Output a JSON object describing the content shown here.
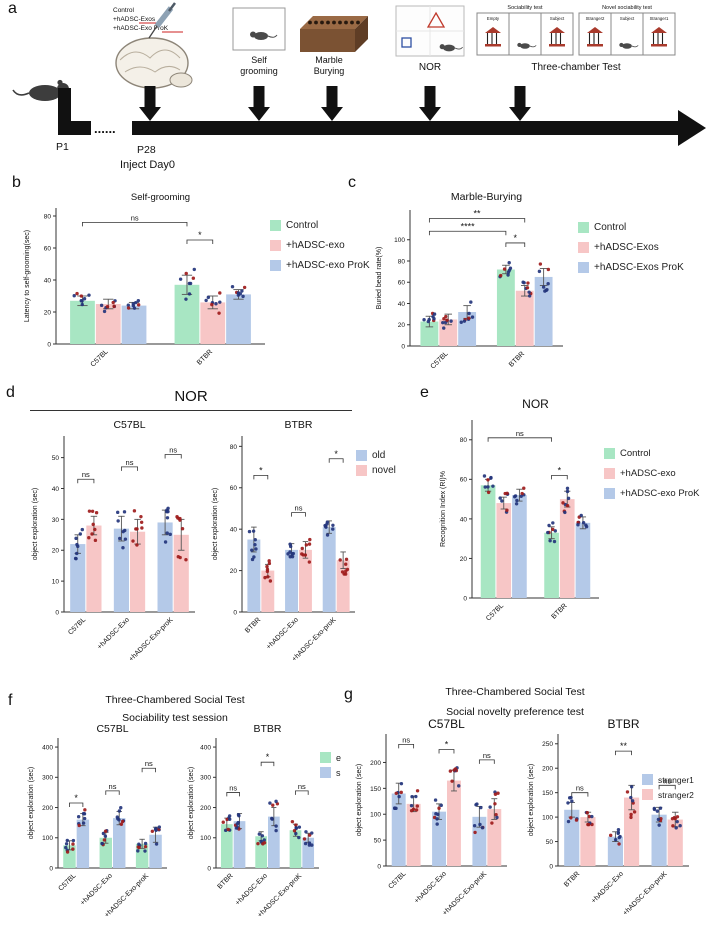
{
  "panels": {
    "a": "a",
    "b": "b",
    "c": "c",
    "d": "d",
    "e": "e",
    "f": "f",
    "g": "g"
  },
  "colors": {
    "green": "#a8e6c3",
    "pink": "#f7c6c6",
    "blue": "#b4c9e8",
    "navy": "#24357c",
    "red": "#9e1b1b"
  },
  "panel_a": {
    "injection_labels": [
      "Control",
      "+hADSC-Exos",
      "+hADSC-Exo ProK"
    ],
    "test_labels": {
      "grooming1": "Self",
      "grooming2": "grooming",
      "marble1": "Marble",
      "marble2": "Burying",
      "nor": "NOR",
      "three": "Three-chamber Test"
    },
    "sociability_title": "Sociability test",
    "novel_title": "Novel sociability test",
    "chambers1": [
      "Empty",
      "Subject"
    ],
    "chambers2": [
      "Stranger2",
      "Subject",
      "Stranger1"
    ],
    "p1": "P1",
    "dots": "......",
    "p28": "P28",
    "inject": "Inject Day0"
  },
  "titles": {
    "d": "NOR",
    "f1": "Three-Chambered Social Test",
    "f2": "Sociability test session",
    "g1": "Three-Chambered Social Test",
    "g2": "Social novelty preference test"
  },
  "legends": {
    "b": [
      "Control",
      "+hADSC-exo",
      "+hADSC-exo ProK"
    ],
    "c": [
      "Control",
      "+hADSC-Exos",
      "+hADSC-Exos ProK"
    ],
    "d": [
      "old",
      "novel"
    ],
    "e": [
      "Control",
      "+hADSC-exo",
      "+hADSC-exo ProK"
    ],
    "f": [
      "e",
      "s"
    ],
    "g": [
      "stranger1",
      "stranger2"
    ]
  },
  "chart_data": [
    {
      "id": "b-self-grooming",
      "type": "bar",
      "title": "Self-grooming",
      "title_size": 9.5,
      "ylabel": "Latency to self-grooming(sec)",
      "ylim": [
        0,
        85
      ],
      "yticks": [
        0,
        20,
        40,
        60,
        80
      ],
      "categories": [
        "C57BL",
        "BTBR"
      ],
      "rotate": true,
      "ml": 36,
      "mt": 20,
      "mb": 36,
      "series": [
        {
          "name": "Control",
          "color": "green",
          "dots": [
            "navy",
            "navy",
            "red"
          ],
          "values": [
            27,
            37
          ],
          "errors": [
            3,
            6
          ]
        },
        {
          "name": "+hADSC-exo",
          "color": "pink",
          "dots": [
            "navy",
            "red",
            "navy"
          ],
          "values": [
            25,
            26
          ],
          "errors": [
            3,
            4
          ]
        },
        {
          "name": "+hADSC-exo ProK",
          "color": "blue",
          "dots": [
            "navy",
            "navy",
            "red"
          ],
          "values": [
            24,
            31
          ],
          "errors": [
            2,
            3
          ]
        }
      ],
      "annotations": [
        {
          "x1": [
            0,
            0
          ],
          "x2": [
            1,
            0
          ],
          "y": 76,
          "label": "ns"
        },
        {
          "x1": [
            1,
            0
          ],
          "x2": [
            1,
            1
          ],
          "y": 65,
          "label": "*"
        }
      ]
    },
    {
      "id": "c-marble-burying",
      "type": "bar",
      "title": "Marble-Burying",
      "title_size": 10.5,
      "ylabel": "Buried bead rate(%)",
      "ylim": [
        0,
        128
      ],
      "yticks": [
        0,
        20,
        40,
        60,
        80,
        100
      ],
      "categories": [
        "C57BL",
        "BTBR"
      ],
      "rotate": true,
      "ml": 38,
      "mt": 22,
      "mb": 38,
      "series": [
        {
          "name": "Control",
          "color": "green",
          "dots": [
            "navy",
            "navy",
            "red"
          ],
          "values": [
            23,
            72
          ],
          "errors": [
            5,
            4
          ]
        },
        {
          "name": "+hADSC-Exos",
          "color": "pink",
          "dots": [
            "navy",
            "red",
            "navy"
          ],
          "values": [
            25,
            52
          ],
          "errors": [
            5,
            5
          ]
        },
        {
          "name": "+hADSC-Exos ProK",
          "color": "blue",
          "dots": [
            "navy",
            "navy",
            "red"
          ],
          "values": [
            32,
            65
          ],
          "errors": [
            6,
            8
          ]
        }
      ],
      "annotations": [
        {
          "x1": [
            0,
            0
          ],
          "x2": [
            1,
            1
          ],
          "y": 120,
          "label": "**"
        },
        {
          "x1": [
            0,
            0
          ],
          "x2": [
            1,
            0
          ],
          "y": 108,
          "label": "****"
        },
        {
          "x1": [
            1,
            0
          ],
          "x2": [
            1,
            1
          ],
          "y": 97,
          "label": "*"
        }
      ]
    },
    {
      "id": "d-c57bl",
      "type": "bar",
      "title": "C57BL",
      "title_size": 10.5,
      "ylabel": "object exploration (sec)",
      "ylim": [
        0,
        57
      ],
      "yticks": [
        0,
        10,
        20,
        30,
        40,
        50
      ],
      "categories": [
        "C57BL",
        "+hADSC-Exo",
        "+hADSC-Exo-proK"
      ],
      "rotate": true,
      "ml": 36,
      "mt": 20,
      "mb": 70,
      "series": [
        {
          "name": "old",
          "color": "blue",
          "dots": [
            "navy"
          ],
          "values": [
            22,
            27,
            29
          ],
          "errors": [
            3,
            4,
            4
          ]
        },
        {
          "name": "novel",
          "color": "pink",
          "dots": [
            "red"
          ],
          "values": [
            28,
            26,
            25
          ],
          "errors": [
            3,
            4,
            5
          ]
        }
      ],
      "annotations": [
        {
          "x1": [
            0,
            0
          ],
          "x2": [
            0,
            1
          ],
          "y": 43,
          "label": "ns"
        },
        {
          "x1": [
            1,
            0
          ],
          "x2": [
            1,
            1
          ],
          "y": 47,
          "label": "ns"
        },
        {
          "x1": [
            2,
            0
          ],
          "x2": [
            2,
            1
          ],
          "y": 51,
          "label": "ns"
        }
      ]
    },
    {
      "id": "d-btbr",
      "type": "bar",
      "title": "BTBR",
      "title_size": 10.5,
      "ylabel": "object exploration (sec)",
      "ylim": [
        0,
        85
      ],
      "yticks": [
        0,
        20,
        40,
        60,
        80
      ],
      "categories": [
        "BTBR",
        "+hADSC-Exo",
        "+hADSC-Exo-proK"
      ],
      "rotate": true,
      "ml": 34,
      "mt": 20,
      "mb": 70,
      "series": [
        {
          "name": "old",
          "color": "blue",
          "dots": [
            "navy"
          ],
          "values": [
            35,
            30,
            41
          ],
          "errors": [
            6,
            3,
            3
          ]
        },
        {
          "name": "novel",
          "color": "pink",
          "dots": [
            "red"
          ],
          "values": [
            20,
            30,
            25
          ],
          "errors": [
            3,
            4,
            4
          ]
        }
      ],
      "annotations": [
        {
          "x1": [
            0,
            0
          ],
          "x2": [
            0,
            1
          ],
          "y": 66,
          "label": "*"
        },
        {
          "x1": [
            1,
            0
          ],
          "x2": [
            1,
            1
          ],
          "y": 48,
          "label": "ns"
        },
        {
          "x1": [
            2,
            0
          ],
          "x2": [
            2,
            1
          ],
          "y": 74,
          "label": "*"
        }
      ]
    },
    {
      "id": "e-nor-ri",
      "type": "bar",
      "title": "NOR",
      "title_size": 12,
      "ylabel": "Recognition Index (RI)%",
      "ylim": [
        0,
        90
      ],
      "yticks": [
        0,
        20,
        40,
        60,
        80
      ],
      "categories": [
        "C57BL",
        "BTBR"
      ],
      "rotate": true,
      "ml": 36,
      "mt": 24,
      "mb": 48,
      "series": [
        {
          "name": "Control",
          "color": "green",
          "dots": [
            "navy",
            "navy",
            "red"
          ],
          "values": [
            57,
            33
          ],
          "errors": [
            3,
            3
          ]
        },
        {
          "name": "+hADSC-exo",
          "color": "pink",
          "dots": [
            "navy",
            "red",
            "navy"
          ],
          "values": [
            48,
            50
          ],
          "errors": [
            3,
            4
          ]
        },
        {
          "name": "+hADSC-exo ProK",
          "color": "blue",
          "dots": [
            "navy",
            "navy",
            "red"
          ],
          "values": [
            52,
            38
          ],
          "errors": [
            3,
            3
          ]
        }
      ],
      "annotations": [
        {
          "x1": [
            0,
            0
          ],
          "x2": [
            1,
            0
          ],
          "y": 81,
          "label": "ns"
        },
        {
          "x1": [
            1,
            0
          ],
          "x2": [
            1,
            1
          ],
          "y": 62,
          "label": "*"
        }
      ]
    },
    {
      "id": "f-c57bl",
      "type": "bar",
      "title": "C57BL",
      "title_size": 10.5,
      "ylabel": "object exploration (sec)",
      "ylim": [
        0,
        430
      ],
      "yticks": [
        0,
        100,
        200,
        300,
        400
      ],
      "categories": [
        "C57BL",
        "+hADSC-Exo",
        "+hADSC-Exo-proK"
      ],
      "rotate": true,
      "ml": 34,
      "mt": 18,
      "mb": 62,
      "series": [
        {
          "name": "e",
          "color": "green",
          "dots": [
            "navy",
            "red",
            "navy"
          ],
          "values": [
            75,
            100,
            80
          ],
          "errors": [
            15,
            18,
            15
          ]
        },
        {
          "name": "s",
          "color": "blue",
          "dots": [
            "navy",
            "navy",
            "red"
          ],
          "values": [
            160,
            165,
            110
          ],
          "errors": [
            20,
            22,
            25
          ]
        }
      ],
      "annotations": [
        {
          "x1": [
            0,
            0
          ],
          "x2": [
            0,
            1
          ],
          "y": 215,
          "label": "*"
        },
        {
          "x1": [
            1,
            0
          ],
          "x2": [
            1,
            1
          ],
          "y": 255,
          "label": "ns"
        },
        {
          "x1": [
            2,
            0
          ],
          "x2": [
            2,
            1
          ],
          "y": 330,
          "label": "ns"
        }
      ]
    },
    {
      "id": "f-btbr",
      "type": "bar",
      "title": "BTBR",
      "title_size": 10.5,
      "ylabel": "object exploration (sec)",
      "ylim": [
        0,
        430
      ],
      "yticks": [
        0,
        100,
        200,
        300,
        400
      ],
      "categories": [
        "BTBR",
        "+hADSC-Exo",
        "+hADSC-Exo-proK"
      ],
      "rotate": true,
      "ml": 32,
      "mt": 18,
      "mb": 62,
      "series": [
        {
          "name": "e",
          "color": "green",
          "dots": [
            "navy",
            "red",
            "navy"
          ],
          "values": [
            145,
            105,
            125
          ],
          "errors": [
            20,
            15,
            20
          ]
        },
        {
          "name": "s",
          "color": "blue",
          "dots": [
            "navy",
            "navy",
            "red"
          ],
          "values": [
            155,
            170,
            100
          ],
          "errors": [
            25,
            30,
            15
          ]
        }
      ],
      "annotations": [
        {
          "x1": [
            0,
            0
          ],
          "x2": [
            0,
            1
          ],
          "y": 250,
          "label": "ns"
        },
        {
          "x1": [
            1,
            0
          ],
          "x2": [
            1,
            1
          ],
          "y": 350,
          "label": "*"
        },
        {
          "x1": [
            2,
            0
          ],
          "x2": [
            2,
            1
          ],
          "y": 255,
          "label": "ns"
        }
      ]
    },
    {
      "id": "g-c57bl",
      "type": "bar",
      "title": "C57BL",
      "title_size": 12,
      "ylabel": "object exploration (sec)",
      "ylim": [
        0,
        255
      ],
      "yticks": [
        0,
        50,
        100,
        150,
        200
      ],
      "categories": [
        "C57BL",
        "+hADSC-Exo",
        "+hADSC-Exo-proK"
      ],
      "rotate": true,
      "ml": 34,
      "mt": 18,
      "mb": 64,
      "series": [
        {
          "name": "stranger1",
          "color": "blue",
          "dots": [
            "navy",
            "navy",
            "red"
          ],
          "values": [
            140,
            105,
            95
          ],
          "errors": [
            20,
            15,
            20
          ]
        },
        {
          "name": "stranger2",
          "color": "pink",
          "dots": [
            "red",
            "navy",
            "red"
          ],
          "values": [
            120,
            165,
            110
          ],
          "errors": [
            15,
            20,
            20
          ]
        }
      ],
      "annotations": [
        {
          "x1": [
            0,
            0
          ],
          "x2": [
            0,
            1
          ],
          "y": 235,
          "label": "ns"
        },
        {
          "x1": [
            1,
            0
          ],
          "x2": [
            1,
            1
          ],
          "y": 225,
          "label": "*"
        },
        {
          "x1": [
            2,
            0
          ],
          "x2": [
            2,
            1
          ],
          "y": 205,
          "label": "ns"
        }
      ]
    },
    {
      "id": "g-btbr",
      "type": "bar",
      "title": "BTBR",
      "title_size": 12,
      "ylabel": "object exploration (sec)",
      "ylim": [
        0,
        270
      ],
      "yticks": [
        0,
        50,
        100,
        150,
        200,
        250
      ],
      "categories": [
        "BTBR",
        "+hADSC-Exo",
        "+hADSC-Exo-proK"
      ],
      "rotate": true,
      "ml": 34,
      "mt": 18,
      "mb": 64,
      "series": [
        {
          "name": "stranger1",
          "color": "blue",
          "dots": [
            "navy",
            "navy",
            "red"
          ],
          "values": [
            115,
            60,
            105
          ],
          "errors": [
            15,
            10,
            15
          ]
        },
        {
          "name": "stranger2",
          "color": "pink",
          "dots": [
            "red",
            "navy",
            "red"
          ],
          "values": [
            100,
            140,
            95
          ],
          "errors": [
            10,
            25,
            15
          ]
        }
      ],
      "annotations": [
        {
          "x1": [
            0,
            0
          ],
          "x2": [
            0,
            1
          ],
          "y": 150,
          "label": "ns"
        },
        {
          "x1": [
            1,
            0
          ],
          "x2": [
            1,
            1
          ],
          "y": 235,
          "label": "**"
        },
        {
          "x1": [
            2,
            0
          ],
          "x2": [
            2,
            1
          ],
          "y": 165,
          "label": "ns"
        }
      ]
    }
  ]
}
